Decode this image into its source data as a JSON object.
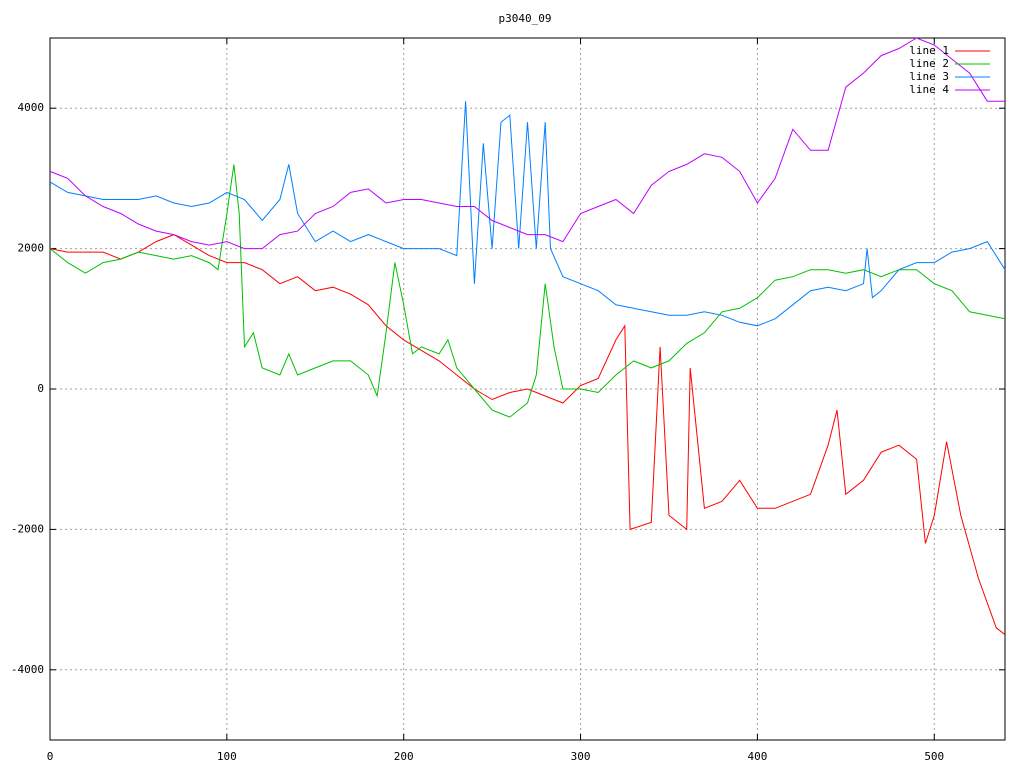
{
  "chart_data": {
    "type": "line",
    "title": "p3040_09",
    "xlim": [
      0,
      540
    ],
    "ylim": [
      -5000,
      5000
    ],
    "xticks": [
      0,
      100,
      200,
      300,
      400,
      500
    ],
    "yticks": [
      -4000,
      -2000,
      0,
      2000,
      4000
    ],
    "grid": true,
    "legend": "top right",
    "series": [
      {
        "name": "line 1",
        "color": "#ff0000",
        "x": [
          0,
          10,
          20,
          30,
          40,
          50,
          60,
          70,
          80,
          90,
          100,
          110,
          120,
          130,
          140,
          150,
          160,
          170,
          180,
          190,
          200,
          210,
          220,
          230,
          240,
          250,
          260,
          270,
          280,
          290,
          300,
          310,
          320,
          325,
          328,
          340,
          345,
          350,
          360,
          362,
          370,
          380,
          390,
          400,
          410,
          420,
          430,
          440,
          445,
          450,
          460,
          470,
          480,
          490,
          495,
          500,
          507,
          515,
          525,
          535,
          540
        ],
        "values": [
          2000,
          1950,
          1950,
          1950,
          1850,
          1950,
          2100,
          2200,
          2050,
          1900,
          1800,
          1800,
          1700,
          1500,
          1600,
          1400,
          1450,
          1350,
          1200,
          900,
          700,
          550,
          400,
          200,
          0,
          -150,
          -50,
          0,
          -100,
          -200,
          50,
          150,
          700,
          900,
          -2000,
          -1900,
          600,
          -1800,
          -2000,
          300,
          -1700,
          -1600,
          -1300,
          -1700,
          -1700,
          -1600,
          -1500,
          -800,
          -300,
          -1500,
          -1300,
          -900,
          -800,
          -1000,
          -2200,
          -1800,
          -750,
          -1800,
          -2700,
          -3400,
          -3500
        ]
      },
      {
        "name": "line 2",
        "color": "#00c000",
        "x": [
          0,
          10,
          20,
          30,
          40,
          50,
          60,
          70,
          80,
          90,
          95,
          100,
          104,
          107,
          110,
          115,
          120,
          130,
          135,
          140,
          150,
          160,
          170,
          180,
          185,
          190,
          195,
          200,
          205,
          210,
          220,
          225,
          230,
          240,
          250,
          260,
          270,
          275,
          280,
          285,
          290,
          300,
          310,
          320,
          330,
          340,
          350,
          360,
          370,
          380,
          390,
          400,
          410,
          420,
          430,
          440,
          450,
          460,
          470,
          480,
          490,
          500,
          510,
          520,
          530,
          540
        ],
        "values": [
          2000,
          1800,
          1650,
          1800,
          1850,
          1950,
          1900,
          1850,
          1900,
          1800,
          1700,
          2500,
          3200,
          2500,
          600,
          800,
          300,
          200,
          500,
          200,
          300,
          400,
          400,
          200,
          -100,
          800,
          1800,
          1200,
          500,
          600,
          500,
          700,
          300,
          0,
          -300,
          -400,
          -200,
          200,
          1500,
          600,
          0,
          0,
          -50,
          200,
          400,
          300,
          400,
          650,
          800,
          1100,
          1150,
          1300,
          1550,
          1600,
          1700,
          1700,
          1650,
          1700,
          1600,
          1700,
          1700,
          1500,
          1400,
          1100,
          1050,
          1000
        ]
      },
      {
        "name": "line 3",
        "color": "#0080ff",
        "x": [
          0,
          10,
          20,
          30,
          40,
          50,
          60,
          70,
          80,
          90,
          100,
          110,
          120,
          130,
          135,
          140,
          150,
          160,
          170,
          180,
          190,
          200,
          210,
          220,
          230,
          235,
          240,
          245,
          250,
          255,
          260,
          265,
          270,
          275,
          280,
          283,
          290,
          300,
          310,
          320,
          330,
          340,
          350,
          360,
          370,
          380,
          390,
          400,
          410,
          420,
          430,
          440,
          450,
          460,
          462,
          465,
          470,
          480,
          490,
          500,
          510,
          520,
          530,
          540
        ],
        "values": [
          2950,
          2800,
          2750,
          2700,
          2700,
          2700,
          2750,
          2650,
          2600,
          2650,
          2800,
          2700,
          2400,
          2700,
          3200,
          2500,
          2100,
          2250,
          2100,
          2200,
          2100,
          2000,
          2000,
          2000,
          1900,
          4100,
          1500,
          3500,
          2000,
          3800,
          3900,
          2000,
          3800,
          2000,
          3800,
          2000,
          1600,
          1500,
          1400,
          1200,
          1150,
          1100,
          1050,
          1050,
          1100,
          1050,
          950,
          900,
          1000,
          1200,
          1400,
          1450,
          1400,
          1500,
          2000,
          1300,
          1400,
          1700,
          1800,
          1800,
          1950,
          2000,
          2100,
          1700
        ]
      },
      {
        "name": "line 4",
        "color": "#c000ff",
        "x": [
          0,
          10,
          20,
          30,
          40,
          50,
          60,
          70,
          80,
          90,
          100,
          110,
          120,
          130,
          140,
          150,
          160,
          170,
          180,
          190,
          200,
          210,
          220,
          230,
          240,
          250,
          260,
          270,
          280,
          290,
          300,
          310,
          320,
          330,
          340,
          350,
          360,
          370,
          380,
          390,
          400,
          410,
          420,
          430,
          440,
          450,
          460,
          470,
          480,
          490,
          500,
          510,
          520,
          530,
          540
        ],
        "values": [
          3100,
          3000,
          2750,
          2600,
          2500,
          2350,
          2250,
          2200,
          2100,
          2050,
          2100,
          2000,
          2000,
          2200,
          2250,
          2500,
          2600,
          2800,
          2850,
          2650,
          2700,
          2700,
          2650,
          2600,
          2600,
          2400,
          2300,
          2200,
          2200,
          2100,
          2500,
          2600,
          2700,
          2500,
          2900,
          3100,
          3200,
          3350,
          3300,
          3100,
          2650,
          3000,
          3700,
          3400,
          3400,
          4300,
          4500,
          4750,
          4850,
          5000,
          4900,
          4700,
          4500,
          4100,
          4100
        ]
      }
    ]
  }
}
